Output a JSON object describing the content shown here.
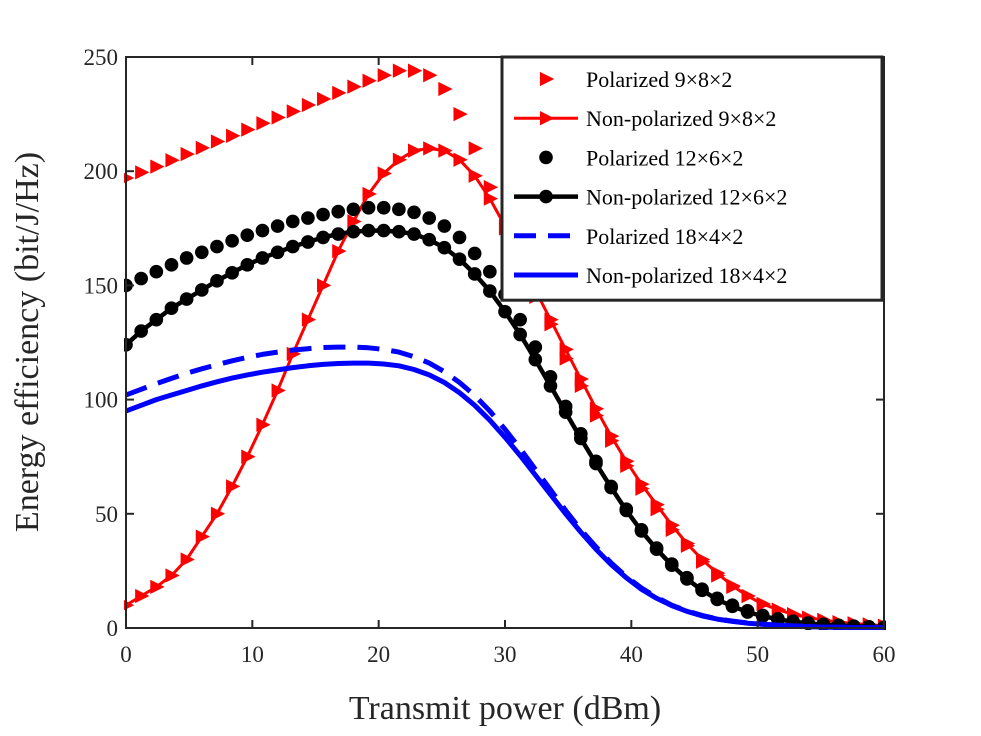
{
  "chart_data": {
    "type": "line",
    "xlabel": "Transmit power (dBm)",
    "ylabel": "Energy efficiency (bit/J/Hz)",
    "xlim": [
      0,
      60
    ],
    "ylim": [
      0,
      250
    ],
    "xticks": [
      0,
      10,
      20,
      30,
      40,
      50,
      60
    ],
    "yticks": [
      0,
      50,
      100,
      150,
      200,
      250
    ],
    "grid": false,
    "legend_position": "top-right",
    "x": [
      0,
      1.2,
      2.4,
      3.6,
      4.8,
      6,
      7.2,
      8.4,
      9.6,
      10.8,
      12,
      13.2,
      14.4,
      15.6,
      16.8,
      18,
      19.2,
      20.4,
      21.6,
      22.8,
      24,
      25.2,
      26.4,
      27.6,
      28.8,
      30,
      31.2,
      32.4,
      33.6,
      34.8,
      36,
      37.2,
      38.4,
      39.6,
      40.8,
      42,
      43.2,
      44.4,
      45.6,
      46.8,
      48,
      49.2,
      50.4,
      51.6,
      52.8,
      54,
      55.2,
      56.4,
      57.6,
      58.8,
      60
    ],
    "series": [
      {
        "name": "Polarized 9×8×2",
        "color": "#ff0000",
        "line": "none",
        "marker": "triangle-right",
        "values": [
          197.0,
          199.5,
          202.0,
          204.8,
          207.5,
          210.2,
          213.0,
          215.5,
          218.2,
          221.0,
          223.5,
          226.2,
          229.0,
          231.6,
          234.3,
          237.0,
          239.6,
          242.0,
          244.0,
          244.0,
          242.0,
          236.0,
          225.0,
          210.0,
          193.0,
          175.0,
          160.0,
          145.0,
          133.0,
          118.0,
          106.0,
          93.0,
          82.0,
          71.0,
          61.0,
          52.0,
          43.0,
          36.0,
          29.0,
          23.0,
          18.0,
          14.0,
          10.5,
          8.0,
          6.0,
          4.5,
          3.5,
          2.5,
          2.0,
          1.5,
          1.0
        ]
      },
      {
        "name": "Non-polarized 9×8×2",
        "color": "#ff0000",
        "line": "solid",
        "marker": "triangle-right",
        "values": [
          10.0,
          14.0,
          18.0,
          23.0,
          30.0,
          40.0,
          50.0,
          62.0,
          75.0,
          89.0,
          104.0,
          120.0,
          135.0,
          150.0,
          165.0,
          178.0,
          190.0,
          199.0,
          205.0,
          209.0,
          210.0,
          209.0,
          205.0,
          198.0,
          188.0,
          176.0,
          162.0,
          148.0,
          135.0,
          122.0,
          109.0,
          96.0,
          84.0,
          73.0,
          63.0,
          54.0,
          45.0,
          37.0,
          30.0,
          24.0,
          18.5,
          14.0,
          10.5,
          8.0,
          6.0,
          4.5,
          3.5,
          2.5,
          2.0,
          1.5,
          1.0
        ]
      },
      {
        "name": "Polarized 12×6×2",
        "color": "#000000",
        "line": "none",
        "marker": "circle",
        "values": [
          150.0,
          153.0,
          156.0,
          159.0,
          162.0,
          164.5,
          167.0,
          169.5,
          172.0,
          174.0,
          176.0,
          178.0,
          179.5,
          181.0,
          182.3,
          183.3,
          184.0,
          184.0,
          183.3,
          182.0,
          179.5,
          176.0,
          171.0,
          164.0,
          156.0,
          146.0,
          135.0,
          123.0,
          110.0,
          97.0,
          85.0,
          73.0,
          62.0,
          52.0,
          43.0,
          35.0,
          28.0,
          22.0,
          17.0,
          13.0,
          10.0,
          7.5,
          5.5,
          4.0,
          3.0,
          2.2,
          1.6,
          1.2,
          0.8,
          0.5,
          0.3
        ]
      },
      {
        "name": "Non-polarized 12×6×2",
        "color": "#000000",
        "line": "solid",
        "marker": "circle",
        "values": [
          124.0,
          130.0,
          135.0,
          140.0,
          144.0,
          148.0,
          152.0,
          155.5,
          159.0,
          162.0,
          164.5,
          167.0,
          169.0,
          171.0,
          172.5,
          173.5,
          174.0,
          174.0,
          173.5,
          172.5,
          170.0,
          166.5,
          161.5,
          155.0,
          147.5,
          138.5,
          128.5,
          117.5,
          106.0,
          94.5,
          83.0,
          72.0,
          61.5,
          51.5,
          42.5,
          34.5,
          27.5,
          21.5,
          16.5,
          12.5,
          9.5,
          7.0,
          5.2,
          3.8,
          2.8,
          2.0,
          1.5,
          1.1,
          0.8,
          0.5,
          0.3
        ]
      },
      {
        "name": "Polarized 18×4×2",
        "color": "#0000ff",
        "line": "dashed",
        "marker": "none",
        "values": [
          102.0,
          104.5,
          107.0,
          109.3,
          111.5,
          113.5,
          115.3,
          117.0,
          118.5,
          119.8,
          120.8,
          121.7,
          122.3,
          122.8,
          123.0,
          123.0,
          122.7,
          122.0,
          120.8,
          118.8,
          116.0,
          112.2,
          107.5,
          101.8,
          95.0,
          87.0,
          78.5,
          69.5,
          60.5,
          51.5,
          43.0,
          35.5,
          28.5,
          22.5,
          17.5,
          13.5,
          10.0,
          7.5,
          5.5,
          4.0,
          3.0,
          2.2,
          1.6,
          1.2,
          0.9,
          0.6,
          0.4,
          0.3,
          0.2,
          0.1,
          0.1
        ]
      },
      {
        "name": "Non-polarized 18×4×2",
        "color": "#0000ff",
        "line": "solid",
        "marker": "none",
        "values": [
          95.0,
          97.5,
          100.0,
          102.0,
          104.0,
          106.0,
          107.8,
          109.4,
          110.8,
          112.0,
          113.0,
          114.0,
          114.8,
          115.4,
          115.8,
          116.0,
          116.0,
          115.6,
          114.8,
          113.2,
          110.8,
          107.5,
          103.0,
          97.5,
          91.0,
          83.5,
          75.5,
          67.0,
          58.5,
          50.0,
          42.0,
          34.5,
          27.8,
          22.0,
          17.0,
          13.0,
          9.8,
          7.3,
          5.3,
          3.9,
          2.9,
          2.1,
          1.6,
          1.2,
          0.9,
          0.6,
          0.4,
          0.3,
          0.2,
          0.1,
          0.1
        ]
      }
    ]
  }
}
